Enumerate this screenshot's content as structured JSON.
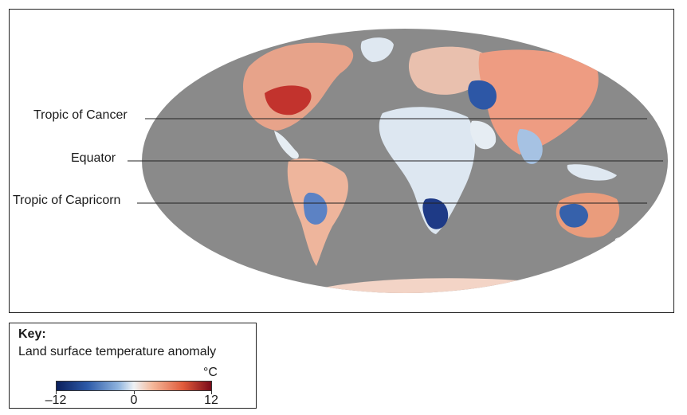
{
  "map": {
    "latitude_lines": [
      {
        "label": "Tropic of Cancer"
      },
      {
        "label": "Equator"
      },
      {
        "label": "Tropic of Capricorn"
      }
    ],
    "colors": {
      "ocean": "#8a8a8a",
      "cold_strong": "#1f3f8f",
      "cold": "#6f98cf",
      "neutral": "#e7eef5",
      "warm": "#eba080",
      "warm_strong": "#b8282a"
    }
  },
  "key": {
    "title": "Key:",
    "subtitle": "Land surface temperature anomaly",
    "unit": "°C",
    "min_label": "–12",
    "mid_label": "0",
    "max_label": "12",
    "range": [
      -12,
      12
    ]
  }
}
